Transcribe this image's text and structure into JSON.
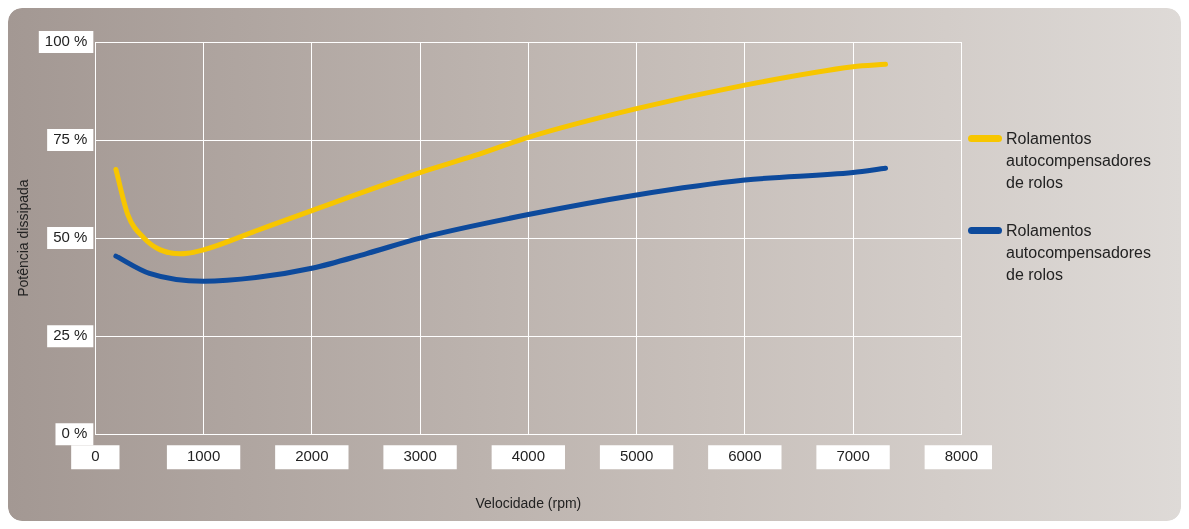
{
  "chart_data": {
    "type": "line",
    "xlabel": "Velocidade (rpm)",
    "ylabel": "Potência dissipada",
    "xlim": [
      0,
      8000
    ],
    "xticks": [
      0,
      1000,
      2000,
      3000,
      4000,
      5000,
      6000,
      7000,
      8000
    ],
    "ylim": [
      0,
      100
    ],
    "yticks": [
      {
        "value": 0,
        "label": "0 %"
      },
      {
        "value": 25,
        "label": "25 %"
      },
      {
        "value": 50,
        "label": "50 %"
      },
      {
        "value": 75,
        "label": "75 %"
      },
      {
        "value": 100,
        "label": "100 %"
      }
    ],
    "grid": true,
    "legend": "right",
    "marker": "none",
    "line_style": "solid",
    "series": [
      {
        "name": "Rolamentos autocompensadores de rolos",
        "color": "#f7c600",
        "x": [
          190,
          300,
          450,
          600,
          785,
          1000,
          1500,
          2000,
          2500,
          3000,
          3500,
          4000,
          5000,
          6000,
          7000,
          7300
        ],
        "values": [
          67.5,
          56,
          50,
          47,
          46,
          47,
          52,
          57,
          62,
          66.7,
          71,
          75.7,
          83,
          89,
          93.7,
          94.3
        ]
      },
      {
        "name": "Rolamentos autocompensadores de rolos",
        "color": "#0d4a9c",
        "x": [
          190,
          500,
          1000,
          1500,
          2000,
          2500,
          3000,
          4000,
          5000,
          6000,
          7000,
          7300
        ],
        "values": [
          45.4,
          41,
          39,
          40,
          42.3,
          46,
          50,
          56,
          61,
          64.8,
          66.7,
          67.8
        ]
      }
    ]
  }
}
